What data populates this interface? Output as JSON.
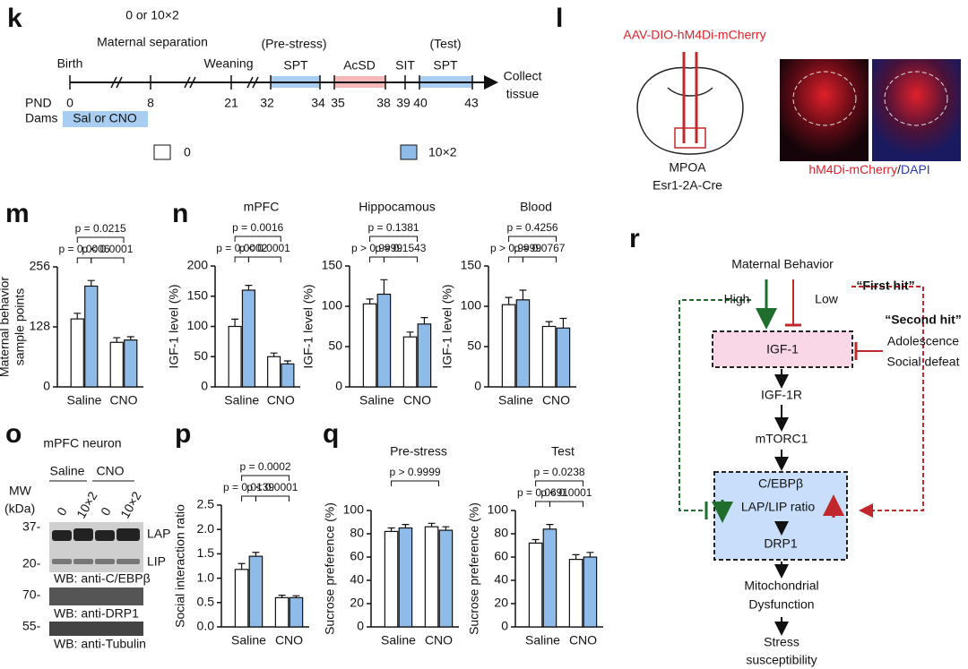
{
  "panels": {
    "letters": [
      "k",
      "l",
      "m",
      "n",
      "o",
      "p",
      "q",
      "r"
    ],
    "k": {
      "dose": "0 or 10×2",
      "separation": "Maternal separation",
      "birth": "Birth",
      "weaning": "Weaning",
      "prestress": "(Pre-stress)",
      "spt1": "SPT",
      "acsd": "AcSD",
      "sit": "SIT",
      "test": "(Test)",
      "spt2": "SPT",
      "collect": "Collect",
      "tissue": "tissue",
      "pnd": "PND",
      "dams": "Dams",
      "sal": "Sal or CNO",
      "days": [
        "0",
        "8",
        "21",
        "32",
        "34",
        "35",
        "38",
        "39",
        "40",
        "43"
      ]
    },
    "l": {
      "virus": "AAV-DIO-hM4Di-mCherry",
      "region": "MPOA",
      "line": "Esr1-2A-Cre",
      "stain1": "hM4Di-mCherry",
      "slash": "/",
      "stain2": "DAPI"
    },
    "o": {
      "title": "mPFC neuron",
      "saline": "Saline",
      "cno": "CNO",
      "mw": "MW",
      "kda": "(kDa)",
      "lanes": [
        "0",
        "10×2",
        "0",
        "10×2"
      ],
      "markers": [
        "37-",
        "20-",
        "70-",
        "55-"
      ],
      "lap": "LAP",
      "lip": "LIP",
      "wb": [
        "WB: anti-C/EBPβ",
        "WB: anti-DRP1",
        "WB: anti-Tubulin"
      ]
    },
    "r": {
      "mb": "Maternal Behavior",
      "high": "High",
      "low": "Low",
      "first": "“First hit”",
      "second": "“Second hit”",
      "adol": "Adolescence",
      "defeat": "Social defeat",
      "igf1": "IGF-1",
      "igf1r": "IGF-1R",
      "mtorc1": "mTORC1",
      "cebpb": "C/EBPβ",
      "ratio": "LAP/LIP ratio",
      "drp1": "DRP1",
      "mito1": "Mitochondrial",
      "mito2": "Dysfunction",
      "stress1": "Stress",
      "stress2": "susceptibility"
    }
  },
  "chart_data": [
    {
      "type": "bar",
      "ylabel": [
        "Maternal behavior",
        "sample points"
      ],
      "categories": [
        "Saline",
        "CNO"
      ],
      "ylim": [
        0,
        256
      ],
      "yticks": [
        0,
        128,
        256
      ],
      "annotations": [
        "p = 0.0215",
        "p = 0.0006",
        "p < 0.0001"
      ],
      "series": [
        {
          "name": "0",
          "color": "#ffffff",
          "values": [
            145,
            95
          ],
          "errors": [
            12,
            10
          ]
        },
        {
          "name": "10×2",
          "color": "#8ebbe8",
          "values": [
            215,
            100
          ],
          "errors": [
            12,
            7
          ]
        }
      ]
    },
    {
      "type": "bar",
      "title": "mPFC",
      "ylabel": "IGF-1 level (%)",
      "categories": [
        "Saline",
        "CNO"
      ],
      "ylim": [
        0,
        200
      ],
      "yticks": [
        0,
        50,
        100,
        150,
        200
      ],
      "annotations": [
        "p = 0.0016",
        "p = 0.0002",
        "p < 0.0001"
      ],
      "series": [
        {
          "name": "0",
          "color": "#ffffff",
          "values": [
            100,
            50
          ],
          "errors": [
            12,
            6
          ]
        },
        {
          "name": "10×2",
          "color": "#8ebbe8",
          "values": [
            160,
            38
          ],
          "errors": [
            8,
            5
          ]
        }
      ]
    },
    {
      "type": "bar",
      "title": "Hippocamous",
      "ylabel": "IGF-1 level (%)",
      "categories": [
        "Saline",
        "CNO"
      ],
      "ylim": [
        0,
        150
      ],
      "yticks": [
        0,
        50,
        100,
        150
      ],
      "annotations": [
        "p = 0.1381",
        "p > 0.9999",
        "p = 0.1543"
      ],
      "series": [
        {
          "name": "0",
          "color": "#ffffff",
          "values": [
            103,
            62
          ],
          "errors": [
            6,
            6
          ]
        },
        {
          "name": "10×2",
          "color": "#8ebbe8",
          "values": [
            115,
            78
          ],
          "errors": [
            18,
            8
          ]
        }
      ]
    },
    {
      "type": "bar",
      "title": "Blood",
      "ylabel": "IGF-1 level (%)",
      "categories": [
        "Saline",
        "CNO"
      ],
      "ylim": [
        0,
        150
      ],
      "yticks": [
        0,
        50,
        100,
        150
      ],
      "annotations": [
        "p = 0.4256",
        "p > 0.9999",
        "p = 0.0767"
      ],
      "series": [
        {
          "name": "0",
          "color": "#ffffff",
          "values": [
            102,
            75
          ],
          "errors": [
            9,
            6
          ]
        },
        {
          "name": "10×2",
          "color": "#8ebbe8",
          "values": [
            108,
            73
          ],
          "errors": [
            12,
            12
          ]
        }
      ]
    },
    {
      "type": "bar",
      "ylabel": "Social interaction ratio",
      "categories": [
        "Saline",
        "CNO"
      ],
      "ylim": [
        0,
        2.5
      ],
      "yticks": [
        {
          "value": 0,
          "label": "0.0"
        },
        0.5,
        {
          "value": 1,
          "label": "1.0"
        },
        1.5,
        {
          "value": 2,
          "label": "2.0"
        },
        2.5
      ],
      "annotations": [
        "p = 0.0002",
        "p = 0.0139",
        "p < 0.0001"
      ],
      "series": [
        {
          "name": "0",
          "color": "#ffffff",
          "values": [
            1.18,
            0.6
          ],
          "errors": [
            0.12,
            0.05
          ]
        },
        {
          "name": "10×2",
          "color": "#8ebbe8",
          "values": [
            1.45,
            0.6
          ],
          "errors": [
            0.08,
            0.04
          ]
        }
      ]
    },
    {
      "type": "bar",
      "title": "Pre-stress",
      "ylabel": "Sucrose preference (%)",
      "categories": [
        "Saline",
        "CNO"
      ],
      "ylim": [
        0,
        100
      ],
      "yticks": [
        0,
        20,
        40,
        60,
        80,
        100
      ],
      "annotations": [
        "p > 0.9999"
      ],
      "series": [
        {
          "name": "0",
          "color": "#ffffff",
          "values": [
            82,
            86
          ],
          "errors": [
            3,
            3
          ]
        },
        {
          "name": "10×2",
          "color": "#8ebbe8",
          "values": [
            85,
            83
          ],
          "errors": [
            3,
            3
          ]
        }
      ]
    },
    {
      "type": "bar",
      "title": "Test",
      "ylabel": "Sucrose preference (%)",
      "categories": [
        "Saline",
        "CNO"
      ],
      "ylim": [
        0,
        100
      ],
      "yticks": [
        0,
        20,
        40,
        60,
        80,
        100
      ],
      "annotations": [
        "p = 0.0238",
        "p = 0.0691",
        "p < 0.0001"
      ],
      "series": [
        {
          "name": "0",
          "color": "#ffffff",
          "values": [
            72,
            58
          ],
          "errors": [
            3,
            4
          ]
        },
        {
          "name": "10×2",
          "color": "#8ebbe8",
          "values": [
            84,
            60
          ],
          "errors": [
            4,
            4
          ]
        }
      ]
    }
  ]
}
